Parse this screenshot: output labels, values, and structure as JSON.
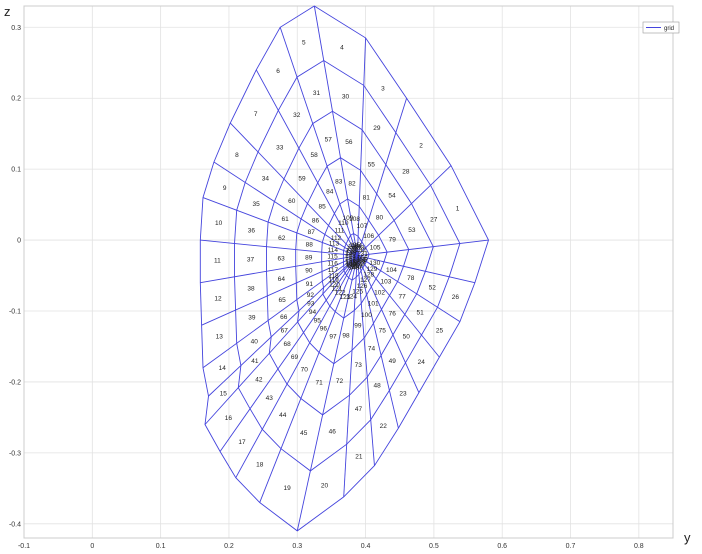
{
  "chart_data": {
    "type": "mesh",
    "xlabel": "y",
    "ylabel": "z",
    "xlim": [
      -0.1,
      0.85
    ],
    "ylim": [
      -0.42,
      0.33
    ],
    "xticks": [
      -0.1,
      0,
      0.1,
      0.2,
      0.3,
      0.4,
      0.5,
      0.6,
      0.7,
      0.8
    ],
    "xtick_labels": [
      "-0.1",
      "0",
      "0.1",
      "0.2",
      "0.3",
      "0.4",
      "0.5",
      "0.6",
      "0.7",
      "0.8"
    ],
    "yticks": [
      -0.4,
      -0.3,
      -0.2,
      -0.1,
      0,
      0.1,
      0.2,
      0.3
    ],
    "ytick_labels": [
      "-0.4",
      "-0.3",
      "-0.2",
      "-0.1",
      "0",
      "0.1",
      "0.2",
      "0.3"
    ],
    "grid": true,
    "legend": {
      "position": "top-right",
      "entries": [
        "grid"
      ]
    },
    "series": [
      {
        "name": "grid",
        "color": "#4444dd"
      }
    ],
    "mesh": {
      "center": [
        0.388,
        -0.022
      ],
      "radial_lines": 26,
      "rings": 6,
      "outer_boundary": [
        [
          0.58,
          0.0
        ],
        [
          0.56,
          -0.06
        ],
        [
          0.538,
          -0.115
        ],
        [
          0.508,
          -0.165
        ],
        [
          0.478,
          -0.215
        ],
        [
          0.448,
          -0.265
        ],
        [
          0.413,
          -0.318
        ],
        [
          0.368,
          -0.362
        ],
        [
          0.3,
          -0.41
        ],
        [
          0.245,
          -0.37
        ],
        [
          0.21,
          -0.335
        ],
        [
          0.187,
          -0.298
        ],
        [
          0.165,
          -0.26
        ],
        [
          0.17,
          -0.22
        ],
        [
          0.162,
          -0.18
        ],
        [
          0.16,
          -0.12
        ],
        [
          0.158,
          -0.06
        ],
        [
          0.158,
          0.0
        ],
        [
          0.162,
          0.06
        ],
        [
          0.178,
          0.11
        ],
        [
          0.202,
          0.165
        ],
        [
          0.24,
          0.24
        ],
        [
          0.275,
          0.3
        ],
        [
          0.325,
          0.33
        ],
        [
          0.4,
          0.285
        ],
        [
          0.46,
          0.2
        ],
        [
          0.525,
          0.105
        ]
      ],
      "cell_labels": [
        "1",
        "2",
        "3",
        "4",
        "5",
        "6",
        "7",
        "8",
        "9",
        "10",
        "11",
        "12",
        "13",
        "14",
        "15",
        "16",
        "17",
        "18",
        "19",
        "20",
        "21",
        "22",
        "23",
        "24",
        "25",
        "26",
        "27",
        "28",
        "29",
        "30",
        "31",
        "32",
        "33",
        "34",
        "35",
        "36",
        "37",
        "38",
        "39",
        "40",
        "41",
        "42",
        "43",
        "44",
        "45",
        "46",
        "47",
        "48",
        "49",
        "50",
        "51",
        "52",
        "53",
        "54",
        "55",
        "56",
        "57",
        "58",
        "59",
        "60",
        "61",
        "62",
        "63",
        "64",
        "65",
        "66",
        "67",
        "68",
        "69",
        "70",
        "71",
        "72",
        "73",
        "74",
        "75",
        "76",
        "77",
        "78",
        "79",
        "80",
        "81",
        "82",
        "83",
        "84",
        "85",
        "86",
        "87",
        "88",
        "89",
        "90",
        "91",
        "92",
        "93",
        "94",
        "95",
        "96",
        "97",
        "98",
        "99",
        "100",
        "101",
        "102",
        "103",
        "104",
        "105",
        "106",
        "107",
        "108",
        "109",
        "110",
        "111",
        "112",
        "113",
        "114",
        "115",
        "116",
        "117",
        "118",
        "119",
        "120",
        "121",
        "122",
        "123",
        "124",
        "125",
        "126",
        "127",
        "128",
        "129",
        "130",
        "131",
        "132",
        "133",
        "134",
        "135",
        "136",
        "137",
        "138",
        "139",
        "140",
        "141",
        "142",
        "143",
        "144",
        "145",
        "146",
        "147",
        "148",
        "149",
        "150",
        "151",
        "152",
        "153",
        "154",
        "155",
        "156"
      ]
    }
  }
}
